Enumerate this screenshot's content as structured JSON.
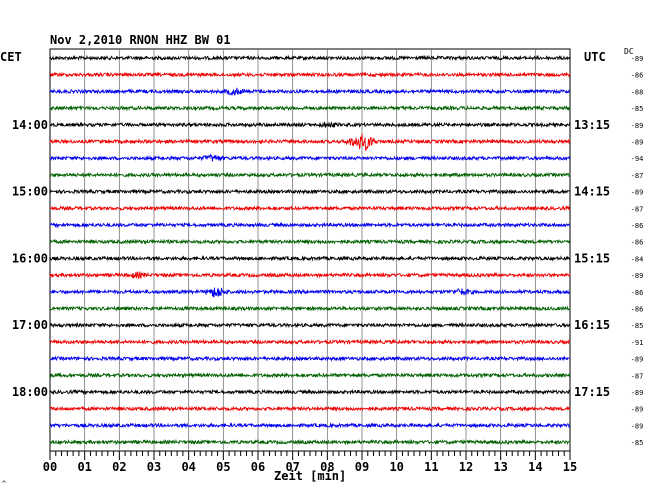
{
  "header": {
    "title": "Nov 2,2010   RNON HHZ BW 01",
    "left_zone": "CET",
    "right_zone": "UTC",
    "dc_label": "DC"
  },
  "chart_data": {
    "type": "line",
    "title": "Nov 2,2010   RNON HHZ BW 01",
    "xlabel": "Zeit [min]",
    "ylabel": "",
    "xlim": [
      0,
      15
    ],
    "x_ticks": [
      "00",
      "01",
      "02",
      "03",
      "04",
      "05",
      "06",
      "07",
      "08",
      "09",
      "10",
      "11",
      "12",
      "13",
      "14",
      "15"
    ],
    "grid": true,
    "trace_colors": [
      "#000000",
      "#ee0000",
      "#0000ee",
      "#006000"
    ],
    "left_time_labels": [
      {
        "trace": 4,
        "text": "14:00"
      },
      {
        "trace": 8,
        "text": "15:00"
      },
      {
        "trace": 12,
        "text": "16:00"
      },
      {
        "trace": 16,
        "text": "17:00"
      },
      {
        "trace": 20,
        "text": "18:00"
      }
    ],
    "right_time_labels": [
      {
        "trace": 4,
        "text": "13:15"
      },
      {
        "trace": 8,
        "text": "14:15"
      },
      {
        "trace": 12,
        "text": "15:15"
      },
      {
        "trace": 16,
        "text": "16:15"
      },
      {
        "trace": 20,
        "text": "17:15"
      }
    ],
    "dc_values": [
      "-89",
      "-86",
      "-88",
      "-85",
      "-89",
      "-89",
      "-94",
      "-87",
      "-89",
      "-87",
      "-86",
      "-86",
      "-84",
      "-89",
      "-86",
      "-86",
      "-85",
      "-91",
      "-89",
      "-87",
      "-89",
      "-89",
      "-89",
      "-85"
    ],
    "events": [
      {
        "trace": 2,
        "minute": 5.3,
        "amplitude": 3
      },
      {
        "trace": 5,
        "minute": 9.1,
        "amplitude": 7
      },
      {
        "trace": 5,
        "minute": 8.8,
        "amplitude": 4
      },
      {
        "trace": 6,
        "minute": 4.7,
        "amplitude": 2.5
      },
      {
        "trace": 14,
        "minute": 4.8,
        "amplitude": 5
      },
      {
        "trace": 14,
        "minute": 11.9,
        "amplitude": 2.5
      },
      {
        "trace": 13,
        "minute": 2.5,
        "amplitude": 2
      },
      {
        "trace": 4,
        "minute": 8.0,
        "amplitude": 2
      }
    ]
  },
  "footer": {
    "corner_mark": "^"
  }
}
